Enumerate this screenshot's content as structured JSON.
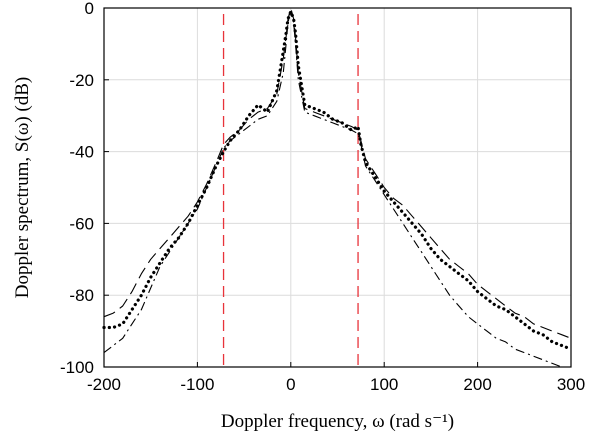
{
  "chart_data": {
    "type": "line",
    "xlabel": "Doppler frequency, ω (rad s⁻¹)",
    "ylabel": "Doppler spectrum, S(ω) (dB)",
    "xlim": [
      -200,
      300
    ],
    "ylim": [
      -100,
      0
    ],
    "xticks": [
      "-200",
      "-100",
      "0",
      "100",
      "200",
      "300"
    ],
    "yticks": [
      "0",
      "-20",
      "-40",
      "-60",
      "-80",
      "-100"
    ],
    "grid": true,
    "vlines": [
      -72,
      72
    ],
    "colors": {
      "series": "#000000",
      "vline": "#e8333a",
      "grid": "#dcdcdc"
    },
    "series": [
      {
        "style": "dotted",
        "x": [
          -200,
          -190,
          -180,
          -170,
          -160,
          -150,
          -140,
          -130,
          -120,
          -110,
          -100,
          -90,
          -80,
          -72,
          -65,
          -55,
          -45,
          -35,
          -25,
          -15,
          -8,
          -5,
          -3,
          0,
          3,
          5,
          8,
          15,
          25,
          35,
          45,
          55,
          65,
          72,
          75,
          80,
          90,
          100,
          110,
          120,
          130,
          140,
          150,
          160,
          170,
          180,
          190,
          200,
          210,
          220,
          230,
          240,
          250,
          260,
          270,
          280,
          290,
          300
        ],
        "y": [
          -89,
          -89,
          -88,
          -84,
          -80,
          -75,
          -71,
          -67,
          -64,
          -60,
          -55,
          -50,
          -44,
          -40,
          -37,
          -34,
          -30,
          -27,
          -29,
          -23,
          -12,
          -7,
          -3,
          -1,
          -3,
          -7,
          -16,
          -27,
          -28,
          -29,
          -31,
          -32,
          -34,
          -33,
          -38,
          -43,
          -47,
          -51,
          -54,
          -57,
          -60,
          -63,
          -67,
          -70,
          -72,
          -74,
          -76,
          -79,
          -81,
          -83,
          -84,
          -86,
          -88,
          -90,
          -91,
          -93,
          -94,
          -95
        ]
      },
      {
        "style": "dash-dot",
        "x": [
          -200,
          -190,
          -180,
          -170,
          -160,
          -150,
          -140,
          -130,
          -120,
          -110,
          -100,
          -90,
          -80,
          -72,
          -65,
          -55,
          -45,
          -35,
          -25,
          -15,
          -8,
          -5,
          -3,
          0,
          3,
          5,
          8,
          15,
          25,
          35,
          45,
          55,
          65,
          72,
          75,
          80,
          90,
          100,
          110,
          120,
          130,
          140,
          150,
          160,
          170,
          180,
          190,
          200,
          210,
          220,
          230,
          240,
          250,
          260,
          270,
          280,
          290,
          300
        ],
        "y": [
          -96,
          -94,
          -92,
          -88,
          -84,
          -78,
          -72,
          -68,
          -64,
          -60,
          -56,
          -50,
          -44,
          -39,
          -37,
          -35,
          -33,
          -31,
          -30,
          -26,
          -18,
          -10,
          -4,
          -1,
          -4,
          -10,
          -20,
          -29,
          -30,
          -31,
          -32,
          -33,
          -34,
          -35,
          -38,
          -44,
          -48,
          -52,
          -56,
          -60,
          -64,
          -68,
          -72,
          -76,
          -80,
          -83,
          -86,
          -88,
          -90,
          -92,
          -93,
          -95,
          -96,
          -97,
          -98,
          -99,
          -100,
          -100
        ]
      },
      {
        "style": "dashed",
        "x": [
          -200,
          -190,
          -180,
          -170,
          -160,
          -150,
          -140,
          -130,
          -120,
          -110,
          -100,
          -90,
          -80,
          -72,
          -65,
          -55,
          -45,
          -35,
          -25,
          -15,
          -8,
          -5,
          -3,
          0,
          3,
          5,
          8,
          15,
          25,
          35,
          45,
          55,
          65,
          72,
          75,
          80,
          90,
          100,
          110,
          120,
          130,
          140,
          150,
          160,
          170,
          180,
          190,
          200,
          210,
          220,
          230,
          240,
          250,
          260,
          270,
          280,
          290,
          300
        ],
        "y": [
          -86,
          -85,
          -83,
          -79,
          -74,
          -70,
          -67,
          -64,
          -61,
          -58,
          -54,
          -49,
          -43,
          -38,
          -36,
          -34,
          -31,
          -29,
          -28,
          -24,
          -14,
          -8,
          -3,
          0,
          -3,
          -8,
          -18,
          -28,
          -29,
          -30,
          -31,
          -32,
          -33,
          -34,
          -37,
          -42,
          -46,
          -50,
          -53,
          -55,
          -58,
          -61,
          -64,
          -67,
          -70,
          -72,
          -74,
          -77,
          -79,
          -81,
          -83,
          -85,
          -86,
          -88,
          -89,
          -90,
          -91,
          -92
        ]
      }
    ]
  }
}
